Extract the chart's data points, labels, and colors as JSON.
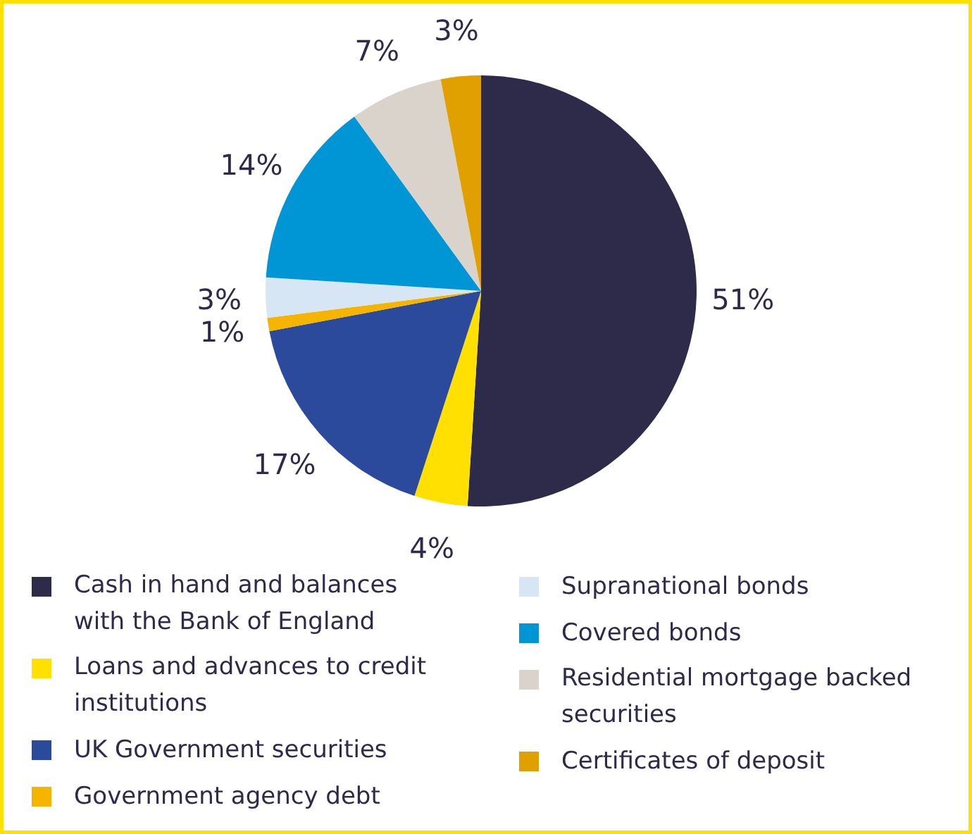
{
  "chart_data": {
    "type": "pie",
    "categories": [
      "Cash in hand and balances with the Bank of England",
      "Loans and advances to credit institutions",
      "UK Government securities",
      "Government agency debt",
      "Supranational bonds",
      "Covered bonds",
      "Residential mortgage backed securities",
      "Certificates of deposit"
    ],
    "values": [
      51,
      4,
      17,
      1,
      3,
      14,
      7,
      3
    ],
    "colors": [
      "#2d2a4a",
      "#ffe000",
      "#2b4a9c",
      "#f5b400",
      "#d6e6f5",
      "#0096d6",
      "#d9d3cb",
      "#e0a000"
    ],
    "value_labels": [
      "51%",
      "4%",
      "17%",
      "1%",
      "3%",
      "14%",
      "7%",
      "3%"
    ],
    "legend": "bottom"
  }
}
